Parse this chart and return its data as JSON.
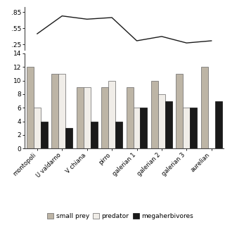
{
  "categories": [
    "montopoli",
    "U valdarno",
    "V chiana",
    "pirro",
    "galerian 1",
    "galerian 2",
    "galerian 3",
    "aurelian"
  ],
  "small_prey": [
    12,
    11,
    9,
    9,
    9,
    10,
    11,
    12
  ],
  "predator": [
    6,
    11,
    9,
    10,
    6,
    8,
    6,
    0
  ],
  "megaherbivores": [
    4,
    3,
    4,
    4,
    6,
    7,
    6,
    7
  ],
  "ppr_line": [
    0.45,
    0.78,
    0.72,
    0.75,
    0.32,
    0.4,
    0.28,
    0.32
  ],
  "ppr_yticks": [
    0.25,
    0.55,
    0.85
  ],
  "ppr_ylim": [
    0.15,
    0.95
  ],
  "bar_ylim": [
    0,
    14
  ],
  "bar_yticks": [
    0,
    2,
    4,
    6,
    8,
    10,
    12,
    14
  ],
  "small_prey_color": "#bdb5a6",
  "predator_color": "#f0ede8",
  "megaherbivores_color": "#1a1a1a",
  "line_color": "#1a1a1a",
  "background_color": "#ffffff",
  "legend_labels": [
    "small prey",
    "predator",
    "megaherbivores"
  ],
  "bar_edge_color": "#666666",
  "bar_width": 0.28
}
